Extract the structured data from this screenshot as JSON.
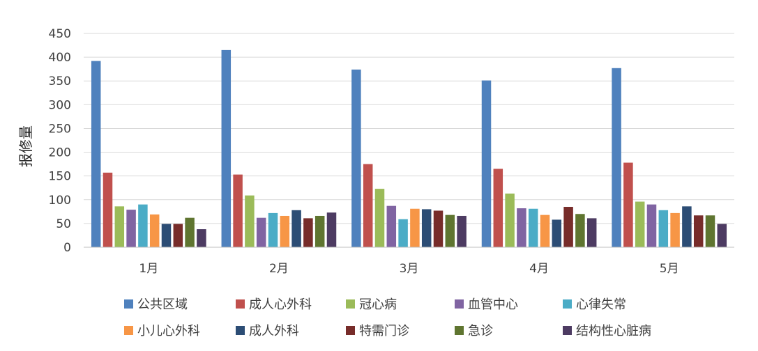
{
  "chart_data": {
    "type": "bar",
    "ylabel": "报修量",
    "ylim": [
      0,
      450
    ],
    "yticks": [
      0,
      50,
      100,
      150,
      200,
      250,
      300,
      350,
      400,
      450
    ],
    "grid": true,
    "legend_position": "bottom",
    "categories": [
      "1月",
      "2月",
      "3月",
      "4月",
      "5月"
    ],
    "series": [
      {
        "name": "公共区域",
        "color": "#4F81BD",
        "values": [
          392,
          415,
          374,
          351,
          377
        ]
      },
      {
        "name": "成人心外科",
        "color": "#C0504D",
        "values": [
          157,
          153,
          175,
          165,
          178
        ]
      },
      {
        "name": "冠心病",
        "color": "#9BBB59",
        "values": [
          86,
          109,
          123,
          113,
          96
        ]
      },
      {
        "name": "血管中心",
        "color": "#8064A2",
        "values": [
          79,
          62,
          87,
          82,
          90
        ]
      },
      {
        "name": "心律失常",
        "color": "#4BACC6",
        "values": [
          90,
          72,
          59,
          81,
          78
        ]
      },
      {
        "name": "小儿心外科",
        "color": "#F79646",
        "values": [
          69,
          66,
          81,
          68,
          72
        ]
      },
      {
        "name": "成人外科",
        "color": "#2C4D75",
        "values": [
          49,
          78,
          80,
          58,
          86
        ]
      },
      {
        "name": "特需门诊",
        "color": "#772C2A",
        "values": [
          49,
          61,
          77,
          85,
          67
        ]
      },
      {
        "name": "急诊",
        "color": "#5F7530",
        "values": [
          62,
          66,
          68,
          70,
          67
        ]
      },
      {
        "name": "结构性心脏病",
        "color": "#4D3B62",
        "values": [
          38,
          73,
          66,
          61,
          49
        ]
      }
    ]
  }
}
